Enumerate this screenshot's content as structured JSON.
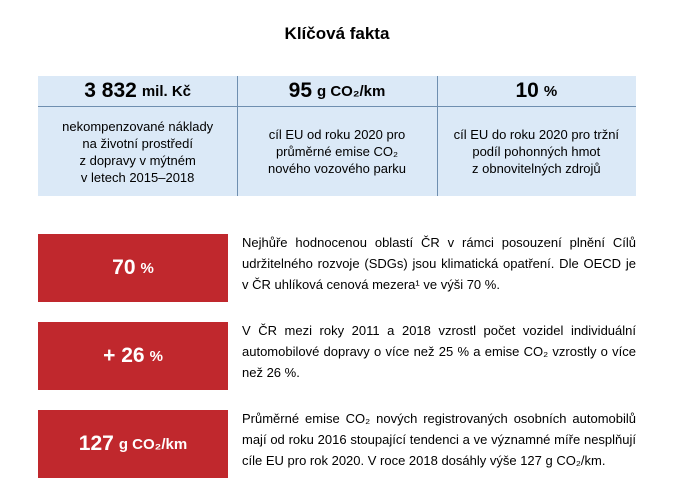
{
  "title": "Klíčová fakta",
  "facts": [
    {
      "value": "3 832",
      "unit": "mil. Kč",
      "description": "nekompenzované náklady\nna životní prostředí\nz dopravy v mýtném\nv letech 2015–2018"
    },
    {
      "value": "95",
      "unit": "g CO₂/km",
      "description": "cíl EU od roku 2020 pro\nprůměrné emise CO₂\nnového vozového parku"
    },
    {
      "value": "10",
      "unit": "%",
      "description": "cíl EU do roku 2020 pro tržní\npodíl pohonných hmot\nz obnovitelných zdrojů"
    }
  ],
  "rows": [
    {
      "value": "70",
      "unit": "%",
      "text": "Nejhůře hodnocenou oblastí ČR v rámci posouzení plnění Cílů udržitelného rozvoje (SDGs) jsou klimatická opatření. Dle OECD je v ČR uhlíková cenová mezera¹ ve výši 70 %."
    },
    {
      "value": "+ 26",
      "unit": "%",
      "text": "V ČR mezi roky 2011 a 2018 vzrostl počet vozidel individuální automobilové dopravy o více než 25 % a emise CO₂ vzrostly o více než 26 %."
    },
    {
      "value": "127",
      "unit": "g CO₂/km",
      "text": "Průměrné emise CO₂ nových registrovaných osobních automobilů mají od roku 2016 stoupající tendenci a ve významné míře nesplňují cíle EU pro rok 2020. V roce 2018 dosáhly výše 127 g CO₂/km."
    }
  ],
  "colors": {
    "fact_background": "#dbe9f7",
    "badge_background": "#c0282d",
    "divider": "#6f8fb0"
  }
}
